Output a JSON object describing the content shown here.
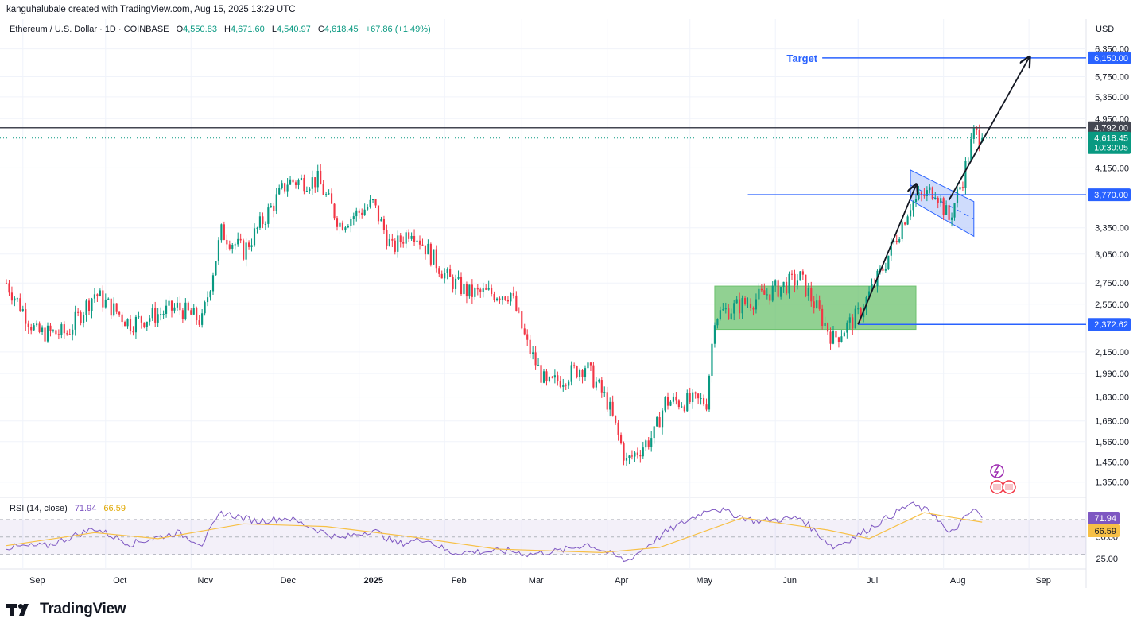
{
  "attribution": "kanguhalubale created with TradingView.com, Aug 15, 2025 13:29 UTC",
  "brand": "TradingView",
  "colors": {
    "up": "#089981",
    "down": "#f23645",
    "line": "#2962ff",
    "rsi": "#7e57c2",
    "rsi_ma": "#f7c046",
    "box": "#6cc16e"
  },
  "chart_data": {
    "type": "candlestick",
    "symbol_line": "Ethereum / U.S. Dollar · 1D · COINBASE",
    "ohlc": {
      "o_label": "O",
      "o": "4,550.83",
      "h_label": "H",
      "h": "4,671.60",
      "l_label": "L",
      "l": "4,540.97",
      "c_label": "C",
      "c": "4,618.45",
      "change": "+67.86 (+1.49%)"
    },
    "currency": "USD",
    "y_ticks": [
      "6,350.00",
      "5,750.00",
      "5,350.00",
      "4,950.00",
      "4,150.00",
      "3,350.00",
      "3,050.00",
      "2,750.00",
      "2,550.00",
      "2,150.00",
      "1,990.00",
      "1,830.00",
      "1,680.00",
      "1,560.00",
      "1,450.00",
      "1,350.00"
    ],
    "y_tick_values": [
      6350,
      5750,
      5350,
      4950,
      4150,
      3350,
      3050,
      2750,
      2550,
      2150,
      1990,
      1830,
      1680,
      1560,
      1450,
      1350
    ],
    "y_scale": "log",
    "x_ticks": [
      "Sep",
      "Oct",
      "Nov",
      "Dec",
      "2025",
      "Feb",
      "Mar",
      "Apr",
      "May",
      "Jun",
      "Jul",
      "Aug",
      "Sep"
    ],
    "price_labels": {
      "target_value": 6150,
      "target": "6,150.00",
      "resistance_value": 4792,
      "resistance": "4,792.00",
      "current_value": 4618.45,
      "current": "4,618.45",
      "countdown": "10:30:05",
      "flag_level_value": 3770,
      "flag_level": "3,770.00",
      "range_support_value": 2372.62,
      "range_support": "2,372.62"
    },
    "target_text": "Target",
    "consolidation_box": {
      "start": "2025-05-10",
      "end": "2025-07-22",
      "low": 2330,
      "high": 2720
    },
    "bull_flag": {
      "top_start": [
        "2025-07-20",
        4120
      ],
      "top_end": [
        "2025-08-12",
        3680
      ],
      "bottom_start": [
        "2025-07-20",
        3700
      ],
      "bottom_end": [
        "2025-08-12",
        3250
      ]
    },
    "arrows": [
      {
        "from": [
          "2025-07-01",
          2372
        ],
        "to": [
          "2025-07-22",
          3900
        ]
      },
      {
        "from": [
          "2025-08-03",
          3700
        ],
        "to": [
          "2025-09-01",
          6150
        ]
      }
    ],
    "path": [
      [
        "2024-08-26",
        2750
      ],
      [
        "2024-09-06",
        2300
      ],
      [
        "2024-09-17",
        2300
      ],
      [
        "2024-09-27",
        2650
      ],
      [
        "2024-10-10",
        2380
      ],
      [
        "2024-10-27",
        2520
      ],
      [
        "2024-11-05",
        2400
      ],
      [
        "2024-11-12",
        3300
      ],
      [
        "2024-11-20",
        3080
      ],
      [
        "2024-12-06",
        3950
      ],
      [
        "2024-12-17",
        3970
      ],
      [
        "2024-12-25",
        3400
      ],
      [
        "2025-01-06",
        3650
      ],
      [
        "2025-01-13",
        3100
      ],
      [
        "2025-01-20",
        3350
      ],
      [
        "2025-02-02",
        2800
      ],
      [
        "2025-02-10",
        2650
      ],
      [
        "2025-02-25",
        2650
      ],
      [
        "2025-03-03",
        2200
      ],
      [
        "2025-03-10",
        1900
      ],
      [
        "2025-03-24",
        2050
      ],
      [
        "2025-04-01",
        1800
      ],
      [
        "2025-04-08",
        1450
      ],
      [
        "2025-04-18",
        1600
      ],
      [
        "2025-04-22",
        1800
      ],
      [
        "2025-05-07",
        1800
      ],
      [
        "2025-05-10",
        2450
      ],
      [
        "2025-05-25",
        2600
      ],
      [
        "2025-06-10",
        2800
      ],
      [
        "2025-06-22",
        2250
      ],
      [
        "2025-07-01",
        2450
      ],
      [
        "2025-07-10",
        2900
      ],
      [
        "2025-07-20",
        3650
      ],
      [
        "2025-07-29",
        3850
      ],
      [
        "2025-08-03",
        3450
      ],
      [
        "2025-08-08",
        4000
      ],
      [
        "2025-08-12",
        4700
      ],
      [
        "2025-08-15",
        4618
      ]
    ],
    "rsi": {
      "label": "RSI (14, close)",
      "value": "71.94",
      "ma_value": "66.59",
      "ticks": [
        "50.00",
        "25.00"
      ],
      "tick_values": [
        50,
        25
      ],
      "upper_band": 70,
      "lower_band": 30,
      "range": [
        15,
        90
      ],
      "path": [
        [
          "2024-08-26",
          38
        ],
        [
          "2024-09-10",
          40
        ],
        [
          "2024-09-27",
          60
        ],
        [
          "2024-10-10",
          42
        ],
        [
          "2024-10-27",
          55
        ],
        [
          "2024-11-05",
          42
        ],
        [
          "2024-11-12",
          78
        ],
        [
          "2024-11-25",
          68
        ],
        [
          "2024-12-06",
          72
        ],
        [
          "2024-12-25",
          48
        ],
        [
          "2025-01-06",
          58
        ],
        [
          "2025-01-15",
          42
        ],
        [
          "2025-01-25",
          48
        ],
        [
          "2025-02-03",
          32
        ],
        [
          "2025-02-25",
          34
        ],
        [
          "2025-03-03",
          30
        ],
        [
          "2025-03-15",
          34
        ],
        [
          "2025-03-25",
          42
        ],
        [
          "2025-04-08",
          22
        ],
        [
          "2025-04-22",
          55
        ],
        [
          "2025-05-09",
          84
        ],
        [
          "2025-05-25",
          68
        ],
        [
          "2025-06-10",
          72
        ],
        [
          "2025-06-22",
          38
        ],
        [
          "2025-07-01",
          52
        ],
        [
          "2025-07-20",
          88
        ],
        [
          "2025-07-29",
          76
        ],
        [
          "2025-08-03",
          52
        ],
        [
          "2025-08-12",
          82
        ],
        [
          "2025-08-15",
          72
        ]
      ],
      "ma_path": [
        [
          "2024-08-26",
          40
        ],
        [
          "2024-09-27",
          55
        ],
        [
          "2024-10-20",
          48
        ],
        [
          "2024-11-20",
          65
        ],
        [
          "2024-12-20",
          62
        ],
        [
          "2025-01-20",
          50
        ],
        [
          "2025-02-20",
          36
        ],
        [
          "2025-03-30",
          32
        ],
        [
          "2025-04-20",
          38
        ],
        [
          "2025-05-20",
          72
        ],
        [
          "2025-06-20",
          58
        ],
        [
          "2025-07-05",
          48
        ],
        [
          "2025-07-25",
          78
        ],
        [
          "2025-08-05",
          72
        ],
        [
          "2025-08-15",
          67
        ]
      ]
    }
  }
}
